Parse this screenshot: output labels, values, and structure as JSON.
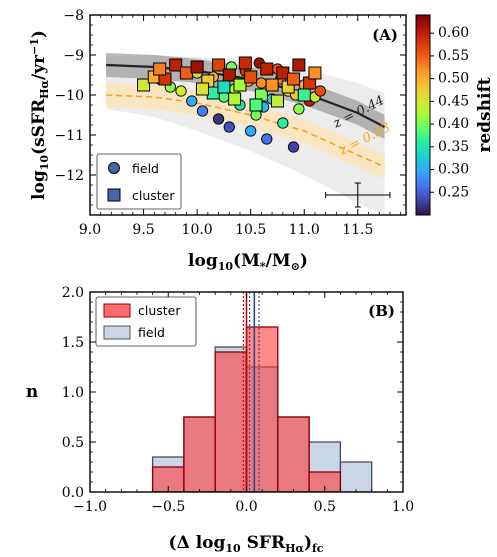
{
  "chart_data": [
    {
      "type": "scatter",
      "panel_label": "(A)",
      "xlabel": "log10(M*/M⊙)",
      "ylabel": "log10(sSFRHα/yr−1)",
      "xlim": [
        9.0,
        11.95
      ],
      "ylim": [
        -13.0,
        -8.0
      ],
      "x_ticks": [
        "9.0",
        "9.5",
        "10.0",
        "10.5",
        "11.0",
        "11.5"
      ],
      "y_ticks": [
        "−8",
        "−9",
        "−10",
        "−11",
        "−12"
      ],
      "colorbar": {
        "label": "redshift",
        "range": [
          0.2,
          0.64
        ],
        "ticks": [
          "0.60",
          "0.55",
          "0.50",
          "0.45",
          "0.40",
          "0.35",
          "0.30",
          "0.25"
        ],
        "colors": [
          "#30123b",
          "#4145ab",
          "#4675ed",
          "#39a2fc",
          "#1bcfd4",
          "#24eca6",
          "#61fc6c",
          "#a4fc3b",
          "#d1e834",
          "#f3c63a",
          "#fe9b2d",
          "#f36315",
          "#d93806",
          "#b11901",
          "#7a0402"
        ]
      },
      "legend": {
        "position": "lower-left",
        "entries": [
          "field",
          "cluster"
        ]
      },
      "annotations": [
        "z = 0.44",
        "z = 0.03"
      ],
      "relations": [
        {
          "name": "z = 0.44",
          "color": "#222222",
          "style": "solid",
          "x": [
            9.15,
            9.6,
            10.0,
            10.5,
            11.0,
            11.5,
            11.75
          ],
          "y": [
            -9.25,
            -9.3,
            -9.4,
            -9.6,
            -9.95,
            -10.45,
            -10.8
          ],
          "band": 0.3
        },
        {
          "name": "z = 0.03",
          "color": "#f5a623",
          "style": "dashed",
          "x": [
            9.15,
            9.6,
            10.0,
            10.5,
            11.0,
            11.5,
            11.75
          ],
          "y": [
            -10.0,
            -10.05,
            -10.2,
            -10.5,
            -10.9,
            -11.5,
            -11.8
          ],
          "band": 0.3
        }
      ],
      "outer_band": {
        "x": [
          9.15,
          9.6,
          10.0,
          10.5,
          11.0,
          11.5,
          11.75
        ],
        "upper": [
          -9.05,
          -9.0,
          -9.05,
          -9.15,
          -9.35,
          -9.7,
          -9.95
        ],
        "lower": [
          -10.35,
          -10.55,
          -10.9,
          -11.4,
          -12.0,
          -12.7,
          -13.0
        ]
      },
      "error_bar": {
        "x": 11.5,
        "y": -12.5,
        "xerr": 0.3,
        "yerr": 0.3
      },
      "field": [
        {
          "x": 9.65,
          "y": -9.6,
          "z": 0.38
        },
        {
          "x": 9.85,
          "y": -9.9,
          "z": 0.45
        },
        {
          "x": 9.95,
          "y": -10.15,
          "z": 0.3
        },
        {
          "x": 10.05,
          "y": -10.4,
          "z": 0.27
        },
        {
          "x": 10.15,
          "y": -9.55,
          "z": 0.5
        },
        {
          "x": 10.2,
          "y": -10.6,
          "z": 0.22
        },
        {
          "x": 10.3,
          "y": -10.8,
          "z": 0.24
        },
        {
          "x": 10.35,
          "y": -9.85,
          "z": 0.42
        },
        {
          "x": 10.4,
          "y": -10.25,
          "z": 0.35
        },
        {
          "x": 10.45,
          "y": -9.4,
          "z": 0.58
        },
        {
          "x": 10.5,
          "y": -10.9,
          "z": 0.3
        },
        {
          "x": 10.55,
          "y": -10.5,
          "z": 0.4
        },
        {
          "x": 10.6,
          "y": -9.7,
          "z": 0.52
        },
        {
          "x": 10.65,
          "y": -11.1,
          "z": 0.26
        },
        {
          "x": 10.7,
          "y": -10.1,
          "z": 0.33
        },
        {
          "x": 10.75,
          "y": -9.35,
          "z": 0.55
        },
        {
          "x": 10.8,
          "y": -10.7,
          "z": 0.36
        },
        {
          "x": 10.85,
          "y": -9.9,
          "z": 0.47
        },
        {
          "x": 10.9,
          "y": -11.3,
          "z": 0.23
        },
        {
          "x": 10.95,
          "y": -10.35,
          "z": 0.41
        },
        {
          "x": 11.0,
          "y": -9.75,
          "z": 0.5
        },
        {
          "x": 11.05,
          "y": -10.15,
          "z": 0.6
        },
        {
          "x": 11.1,
          "y": -10.05,
          "z": 0.44
        },
        {
          "x": 11.15,
          "y": -9.9,
          "z": 0.56
        },
        {
          "x": 9.75,
          "y": -9.8,
          "z": 0.41
        },
        {
          "x": 10.0,
          "y": -9.45,
          "z": 0.46
        },
        {
          "x": 10.25,
          "y": -10.05,
          "z": 0.38
        },
        {
          "x": 10.48,
          "y": -9.65,
          "z": 0.49
        },
        {
          "x": 10.62,
          "y": -10.3,
          "z": 0.31
        },
        {
          "x": 10.78,
          "y": -9.6,
          "z": 0.53
        },
        {
          "x": 10.92,
          "y": -10.0,
          "z": 0.48
        },
        {
          "x": 10.58,
          "y": -9.2,
          "z": 0.62
        },
        {
          "x": 10.32,
          "y": -9.3,
          "z": 0.4
        }
      ],
      "cluster": [
        {
          "x": 9.5,
          "y": -9.75,
          "z": 0.45
        },
        {
          "x": 9.6,
          "y": -9.55,
          "z": 0.5
        },
        {
          "x": 9.7,
          "y": -9.6,
          "z": 0.58
        },
        {
          "x": 9.8,
          "y": -9.25,
          "z": 0.6
        },
        {
          "x": 9.9,
          "y": -9.45,
          "z": 0.55
        },
        {
          "x": 10.0,
          "y": -9.3,
          "z": 0.62
        },
        {
          "x": 10.1,
          "y": -9.65,
          "z": 0.48
        },
        {
          "x": 10.2,
          "y": -9.25,
          "z": 0.57
        },
        {
          "x": 10.3,
          "y": -9.5,
          "z": 0.61
        },
        {
          "x": 10.4,
          "y": -9.75,
          "z": 0.42
        },
        {
          "x": 10.45,
          "y": -9.2,
          "z": 0.59
        },
        {
          "x": 10.5,
          "y": -9.55,
          "z": 0.56
        },
        {
          "x": 10.6,
          "y": -10.0,
          "z": 0.4
        },
        {
          "x": 10.65,
          "y": -9.35,
          "z": 0.6
        },
        {
          "x": 10.7,
          "y": -9.75,
          "z": 0.52
        },
        {
          "x": 10.8,
          "y": -9.45,
          "z": 0.6
        },
        {
          "x": 10.85,
          "y": -9.8,
          "z": 0.47
        },
        {
          "x": 10.9,
          "y": -9.6,
          "z": 0.55
        },
        {
          "x": 11.0,
          "y": -10.0,
          "z": 0.37
        },
        {
          "x": 11.05,
          "y": -9.7,
          "z": 0.58
        },
        {
          "x": 11.1,
          "y": -9.45,
          "z": 0.52
        },
        {
          "x": 10.15,
          "y": -9.95,
          "z": 0.36
        },
        {
          "x": 10.35,
          "y": -10.1,
          "z": 0.43
        },
        {
          "x": 10.55,
          "y": -10.25,
          "z": 0.38
        },
        {
          "x": 10.75,
          "y": -10.15,
          "z": 0.44
        },
        {
          "x": 9.65,
          "y": -9.35,
          "z": 0.53
        },
        {
          "x": 10.05,
          "y": -9.85,
          "z": 0.46
        },
        {
          "x": 10.25,
          "y": -9.8,
          "z": 0.34
        },
        {
          "x": 10.95,
          "y": -9.25,
          "z": 0.61
        }
      ]
    },
    {
      "type": "histogram",
      "panel_label": "(B)",
      "xlabel": "(Δ log10 SFRHα)fc",
      "ylabel": "n",
      "xlim": [
        -1.0,
        1.0
      ],
      "ylim": [
        0.0,
        2.0
      ],
      "x_ticks": [
        "−1.0",
        "−0.5",
        "0.0",
        "0.5",
        "1.0"
      ],
      "y_ticks": [
        "0.0",
        "0.5",
        "1.0",
        "1.5",
        "2.0"
      ],
      "legend": {
        "position": "top-left",
        "entries": [
          "cluster",
          "field"
        ]
      },
      "bin_edges": [
        -0.6,
        -0.4,
        -0.2,
        0.0,
        0.2,
        0.4,
        0.6,
        0.8
      ],
      "series": [
        {
          "name": "field",
          "color": "#b0c4de",
          "values": [
            0.35,
            0.75,
            1.45,
            1.25,
            0.75,
            0.5,
            0.3
          ]
        },
        {
          "name": "cluster",
          "color": "#ff3b3b",
          "values": [
            0.25,
            0.75,
            1.4,
            1.65,
            0.75,
            0.2,
            0.0
          ]
        }
      ],
      "vlines": [
        {
          "x": 0.0,
          "color": "#cc0000",
          "style": "solid"
        },
        {
          "x": -0.02,
          "color": "#cc0000",
          "style": "dotted"
        },
        {
          "x": 0.05,
          "color": "#334488",
          "style": "solid"
        },
        {
          "x": 0.08,
          "color": "#334488",
          "style": "dotted"
        },
        {
          "x": 0.02,
          "color": "#334488",
          "style": "dotted"
        }
      ]
    }
  ]
}
